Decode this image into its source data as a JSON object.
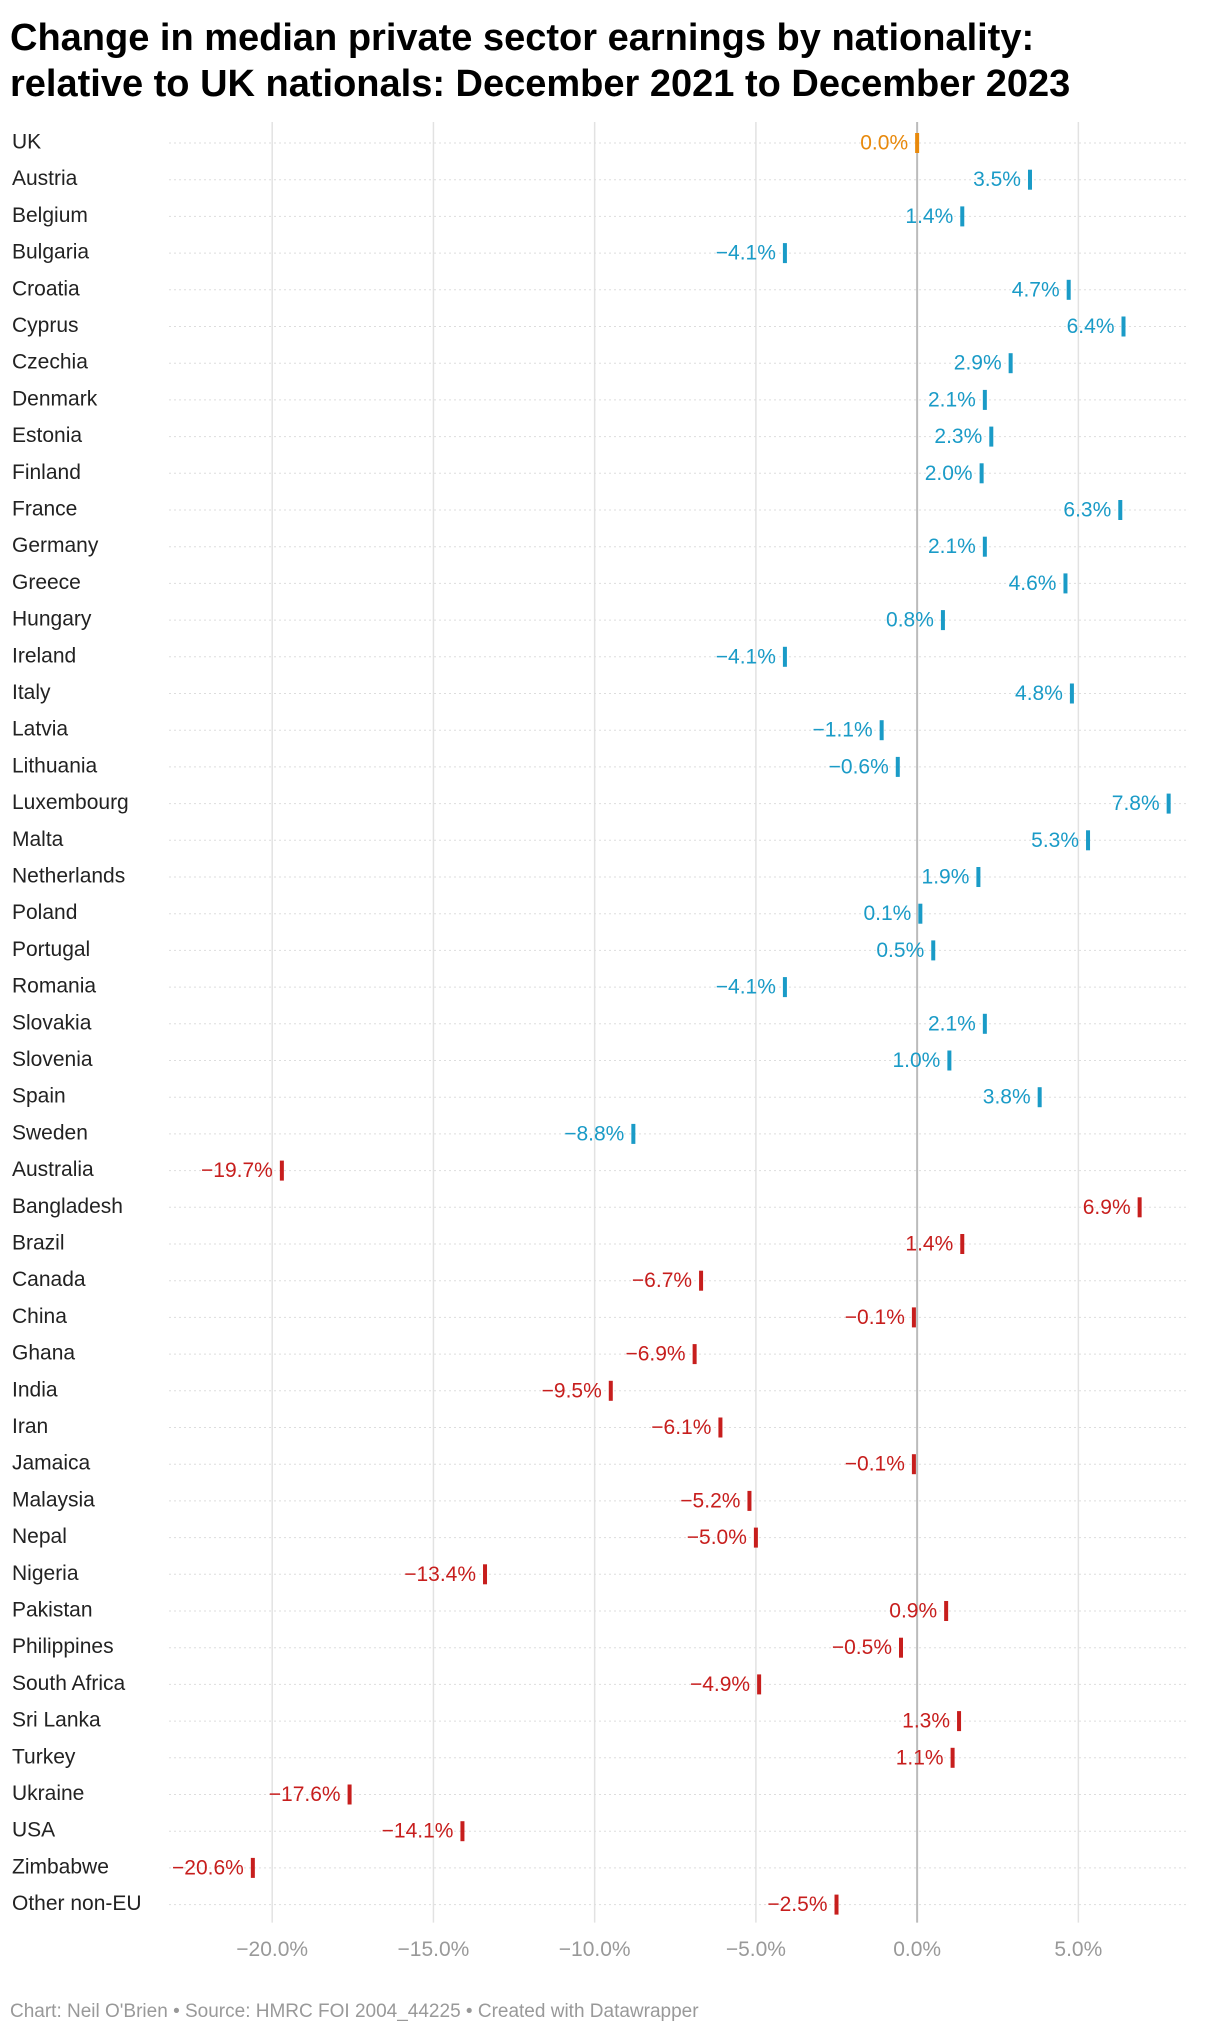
{
  "chart_data": {
    "type": "dot",
    "title": "Change in median private sector earnings by nationality: relative to UK nationals: December 2021 to December 2023",
    "footer": "Chart: Neil O'Brien • Source: HMRC FOI 2004_44225 • Created with Datawrapper",
    "categories": [
      "UK",
      "Austria",
      "Belgium",
      "Bulgaria",
      "Croatia",
      "Cyprus",
      "Czechia",
      "Denmark",
      "Estonia",
      "Finland",
      "France",
      "Germany",
      "Greece",
      "Hungary",
      "Ireland",
      "Italy",
      "Latvia",
      "Lithuania",
      "Luxembourg",
      "Malta",
      "Netherlands",
      "Poland",
      "Portugal",
      "Romania",
      "Slovakia",
      "Slovenia",
      "Spain",
      "Sweden",
      "Australia",
      "Bangladesh",
      "Brazil",
      "Canada",
      "China",
      "Ghana",
      "India",
      "Iran",
      "Jamaica",
      "Malaysia",
      "Nepal",
      "Nigeria",
      "Pakistan",
      "Philippines",
      "South Africa",
      "Sri Lanka",
      "Turkey",
      "Ukraine",
      "USA",
      "Zimbabwe",
      "Other non-EU"
    ],
    "values": [
      0.0,
      3.5,
      1.4,
      -4.1,
      4.7,
      6.4,
      2.9,
      2.1,
      2.3,
      2.0,
      6.3,
      2.1,
      4.6,
      0.8,
      -4.1,
      4.8,
      -1.1,
      -0.6,
      7.8,
      5.3,
      1.9,
      0.1,
      0.5,
      -4.1,
      2.1,
      1.0,
      3.8,
      -8.8,
      -19.7,
      6.9,
      1.4,
      -6.7,
      -0.1,
      -6.9,
      -9.5,
      -6.1,
      -0.1,
      -5.2,
      -5.0,
      -13.4,
      0.9,
      -0.5,
      -4.9,
      1.3,
      1.1,
      -17.6,
      -14.1,
      -20.6,
      -2.5
    ],
    "value_labels": [
      "0.0%",
      "3.5%",
      "1.4%",
      "−4.1%",
      "4.7%",
      "6.4%",
      "2.9%",
      "2.1%",
      "2.3%",
      "2.0%",
      "6.3%",
      "2.1%",
      "4.6%",
      "0.8%",
      "−4.1%",
      "4.8%",
      "−1.1%",
      "−0.6%",
      "7.8%",
      "5.3%",
      "1.9%",
      "0.1%",
      "0.5%",
      "−4.1%",
      "2.1%",
      "1.0%",
      "3.8%",
      "−8.8%",
      "−19.7%",
      "6.9%",
      "1.4%",
      "−6.7%",
      "−0.1%",
      "−6.9%",
      "−9.5%",
      "−6.1%",
      "−0.1%",
      "−5.2%",
      "−5.0%",
      "−13.4%",
      "0.9%",
      "−0.5%",
      "−4.9%",
      "1.3%",
      "1.1%",
      "−17.6%",
      "−14.1%",
      "−20.6%",
      "−2.5%"
    ],
    "colors": [
      "#e8890c",
      "#1a9bc7",
      "#1a9bc7",
      "#1a9bc7",
      "#1a9bc7",
      "#1a9bc7",
      "#1a9bc7",
      "#1a9bc7",
      "#1a9bc7",
      "#1a9bc7",
      "#1a9bc7",
      "#1a9bc7",
      "#1a9bc7",
      "#1a9bc7",
      "#1a9bc7",
      "#1a9bc7",
      "#1a9bc7",
      "#1a9bc7",
      "#1a9bc7",
      "#1a9bc7",
      "#1a9bc7",
      "#1a9bc7",
      "#1a9bc7",
      "#1a9bc7",
      "#1a9bc7",
      "#1a9bc7",
      "#1a9bc7",
      "#1a9bc7",
      "#c71e1d",
      "#c71e1d",
      "#c71e1d",
      "#c71e1d",
      "#c71e1d",
      "#c71e1d",
      "#c71e1d",
      "#c71e1d",
      "#c71e1d",
      "#c71e1d",
      "#c71e1d",
      "#c71e1d",
      "#c71e1d",
      "#c71e1d",
      "#c71e1d",
      "#c71e1d",
      "#c71e1d",
      "#c71e1d",
      "#c71e1d",
      "#c71e1d",
      "#c71e1d"
    ],
    "xlim": [
      -23.2,
      8.4
    ],
    "xticks": [
      {
        "value": -20,
        "label": "−20.0%"
      },
      {
        "value": -15,
        "label": "−15.0%"
      },
      {
        "value": -10,
        "label": "−10.0%"
      },
      {
        "value": -5,
        "label": "−5.0%"
      },
      {
        "value": 0,
        "label": "0.0%"
      },
      {
        "value": 5,
        "label": "5.0%"
      }
    ],
    "grid": true
  }
}
